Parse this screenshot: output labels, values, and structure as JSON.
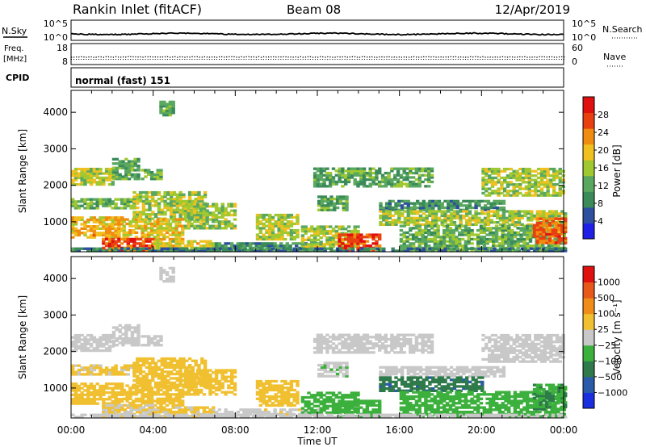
{
  "header": {
    "station": "Rankin Inlet (fitACF)",
    "beam": "Beam 08",
    "date": "12/Apr/2019"
  },
  "strips": {
    "nsky": {
      "label": "N.Sky",
      "ticks": [
        "10^5",
        "10^0"
      ],
      "right_label": "N.Search",
      "right_ticks": [
        "10^5",
        "10^0"
      ]
    },
    "freq": {
      "label_line1": "Freq.",
      "label_line2": "[MHz]",
      "ticks": [
        "18",
        "8"
      ],
      "right_label": "Nave",
      "right_ticks": [
        "60",
        "0"
      ]
    },
    "cpid": {
      "label": "CPID",
      "value": "normal (fast) 151"
    }
  },
  "x_axis": {
    "title": "Time UT",
    "ticks": [
      "00:00",
      "04:00",
      "08:00",
      "12:00",
      "16:00",
      "20:00",
      "00:00"
    ]
  },
  "colors": {
    "power": [
      "#1f1fe6",
      "#2e4fa0",
      "#3a8a5a",
      "#5aa860",
      "#a0c830",
      "#f0c020",
      "#f08c10",
      "#e84010",
      "#e01010"
    ],
    "velocity": [
      "#1a2ee0",
      "#2a5aa8",
      "#2e7a4a",
      "#3cb03c",
      "#c8c8c8",
      "#f0c030",
      "#f08c18",
      "#e85818",
      "#e01010"
    ]
  },
  "chart_data": [
    {
      "type": "heatmap",
      "title": "",
      "xlabel": "Time UT",
      "ylabel": "Slant Range [km]",
      "xlim": [
        0,
        24
      ],
      "ylim": [
        180,
        4600
      ],
      "y_ticks": [
        "1000",
        "2000",
        "3000",
        "4000"
      ],
      "colorbar": {
        "label": "Power [dB]",
        "ticks": [
          "4",
          "8",
          "12",
          "16",
          "20",
          "24",
          "28"
        ],
        "range": [
          0,
          32
        ]
      },
      "regions": [
        {
          "t0": 0.0,
          "t1": 2.0,
          "r0": 2000,
          "r1": 2450,
          "v": 17
        },
        {
          "t0": 2.0,
          "t1": 3.2,
          "r0": 2150,
          "r1": 2750,
          "v": 12
        },
        {
          "t0": 3.4,
          "t1": 4.4,
          "r0": 2150,
          "r1": 2450,
          "v": 14
        },
        {
          "t0": 0.0,
          "t1": 3.0,
          "r0": 1350,
          "r1": 1600,
          "v": 13
        },
        {
          "t0": 3.0,
          "t1": 6.5,
          "r0": 1000,
          "r1": 1800,
          "v": 16
        },
        {
          "t0": 0.0,
          "t1": 2.5,
          "r0": 550,
          "r1": 1150,
          "v": 21
        },
        {
          "t0": 2.5,
          "t1": 5.5,
          "r0": 500,
          "r1": 1050,
          "v": 19
        },
        {
          "t0": 5.5,
          "t1": 8.0,
          "r0": 800,
          "r1": 1500,
          "v": 15
        },
        {
          "t0": 1.5,
          "t1": 4.0,
          "r0": 200,
          "r1": 550,
          "v": 27
        },
        {
          "t0": 4.0,
          "t1": 7.0,
          "r0": 200,
          "r1": 500,
          "v": 18
        },
        {
          "t0": 7.0,
          "t1": 12.0,
          "r0": 200,
          "r1": 420,
          "v": 10
        },
        {
          "t0": 9.0,
          "t1": 11.0,
          "r0": 500,
          "r1": 1200,
          "v": 17
        },
        {
          "t0": 12.0,
          "t1": 13.5,
          "r0": 1300,
          "r1": 1700,
          "v": 12
        },
        {
          "t0": 11.2,
          "t1": 14.0,
          "r0": 300,
          "r1": 900,
          "v": 16
        },
        {
          "t0": 13.0,
          "t1": 15.0,
          "r0": 200,
          "r1": 650,
          "v": 27
        },
        {
          "t0": 11.8,
          "t1": 17.5,
          "r0": 1950,
          "r1": 2450,
          "v": 12
        },
        {
          "t0": 15.0,
          "t1": 21.0,
          "r0": 1300,
          "r1": 1600,
          "v": 10
        },
        {
          "t0": 15.0,
          "t1": 24.0,
          "r0": 900,
          "r1": 1300,
          "v": 16
        },
        {
          "t0": 16.0,
          "t1": 24.0,
          "r0": 200,
          "r1": 900,
          "v": 13
        },
        {
          "t0": 20.0,
          "t1": 24.0,
          "r0": 1700,
          "r1": 2450,
          "v": 16
        },
        {
          "t0": 22.5,
          "t1": 24.0,
          "r0": 400,
          "r1": 1100,
          "v": 25
        },
        {
          "t0": 0.0,
          "t1": 24.0,
          "r0": 180,
          "r1": 260,
          "v": 8
        },
        {
          "t0": 4.3,
          "t1": 5.0,
          "r0": 3900,
          "r1": 4300,
          "v": 12
        }
      ]
    },
    {
      "type": "heatmap",
      "title": "",
      "xlabel": "Time UT",
      "ylabel": "Slant Range [km]",
      "xlim": [
        0,
        24
      ],
      "ylim": [
        180,
        4600
      ],
      "y_ticks": [
        "1000",
        "2000",
        "3000",
        "4000"
      ],
      "colorbar": {
        "label": "Velocity [m s⁻¹]",
        "ticks": [
          "1000",
          "500",
          "100",
          "25",
          "−25",
          "−100",
          "−500",
          "−1000"
        ],
        "range": [
          -1250,
          1250
        ]
      },
      "regions": [
        {
          "t0": 0.0,
          "t1": 2.0,
          "r0": 2000,
          "r1": 2450,
          "v": 0
        },
        {
          "t0": 2.0,
          "t1": 3.2,
          "r0": 2150,
          "r1": 2750,
          "v": 0
        },
        {
          "t0": 3.4,
          "t1": 4.4,
          "r0": 2150,
          "r1": 2450,
          "v": 0
        },
        {
          "t0": 0.0,
          "t1": 3.0,
          "r0": 1350,
          "r1": 1600,
          "v": 200
        },
        {
          "t0": 3.0,
          "t1": 6.5,
          "r0": 1000,
          "r1": 1800,
          "v": 250
        },
        {
          "t0": 0.0,
          "t1": 2.5,
          "r0": 550,
          "r1": 1150,
          "v": 300
        },
        {
          "t0": 2.5,
          "t1": 5.5,
          "r0": 500,
          "r1": 1050,
          "v": 250
        },
        {
          "t0": 5.5,
          "t1": 8.0,
          "r0": 800,
          "r1": 1500,
          "v": 300
        },
        {
          "t0": 1.5,
          "t1": 4.0,
          "r0": 200,
          "r1": 550,
          "v": 150
        },
        {
          "t0": 4.0,
          "t1": 7.0,
          "r0": 200,
          "r1": 500,
          "v": 200
        },
        {
          "t0": 7.0,
          "t1": 12.0,
          "r0": 200,
          "r1": 420,
          "v": 40
        },
        {
          "t0": 9.0,
          "t1": 11.0,
          "r0": 500,
          "r1": 1200,
          "v": 250
        },
        {
          "t0": 12.0,
          "t1": 13.5,
          "r0": 1300,
          "r1": 1700,
          "v": -60
        },
        {
          "t0": 11.2,
          "t1": 14.0,
          "r0": 300,
          "r1": 900,
          "v": -300
        },
        {
          "t0": 13.0,
          "t1": 15.0,
          "r0": 200,
          "r1": 650,
          "v": -300
        },
        {
          "t0": 11.8,
          "t1": 17.5,
          "r0": 1950,
          "r1": 2450,
          "v": 0
        },
        {
          "t0": 15.0,
          "t1": 21.0,
          "r0": 1300,
          "r1": 1600,
          "v": 0
        },
        {
          "t0": 15.0,
          "t1": 20.0,
          "r0": 900,
          "r1": 1300,
          "v": -600
        },
        {
          "t0": 16.0,
          "t1": 24.0,
          "r0": 200,
          "r1": 900,
          "v": -250
        },
        {
          "t0": 20.0,
          "t1": 24.0,
          "r0": 1700,
          "r1": 2450,
          "v": 0
        },
        {
          "t0": 22.5,
          "t1": 24.0,
          "r0": 400,
          "r1": 1100,
          "v": -400
        },
        {
          "t0": 0.0,
          "t1": 24.0,
          "r0": 180,
          "r1": 260,
          "v": 0
        },
        {
          "t0": 4.3,
          "t1": 5.0,
          "r0": 3900,
          "r1": 4300,
          "v": 0
        }
      ]
    }
  ]
}
